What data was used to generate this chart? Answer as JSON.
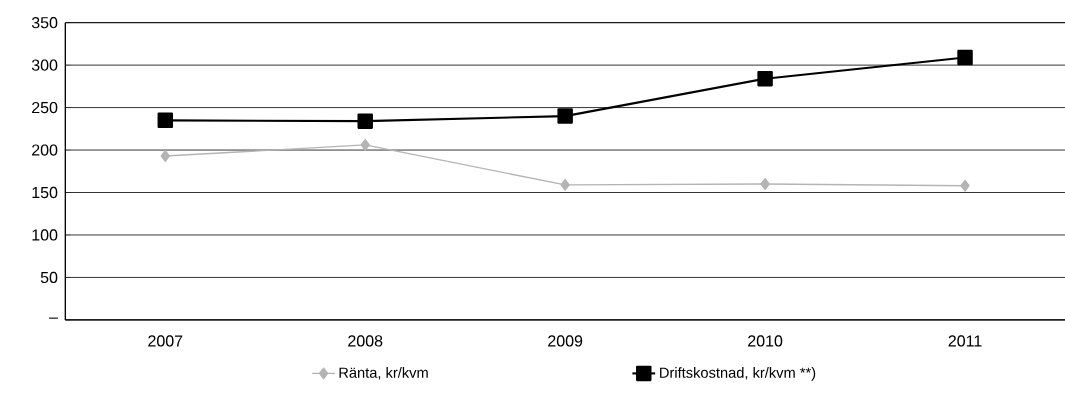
{
  "chart_data": {
    "type": "line",
    "categories": [
      "2007",
      "2008",
      "2009",
      "2010",
      "2011"
    ],
    "series": [
      {
        "name": "Ränta, kr/kvm",
        "color": "#b4b4b4",
        "marker": "diamond",
        "values": [
          193,
          206,
          159,
          160,
          158
        ]
      },
      {
        "name": "Driftskostnad, kr/kvm **)",
        "color": "#000000",
        "marker": "square",
        "values": [
          235,
          234,
          240,
          284,
          309
        ]
      }
    ],
    "ylim": [
      0,
      350
    ],
    "yticks": [
      {
        "value": 0,
        "label": "–"
      },
      50,
      100,
      150,
      200,
      250,
      300,
      350
    ],
    "grid": "y",
    "legend": "bottom"
  }
}
